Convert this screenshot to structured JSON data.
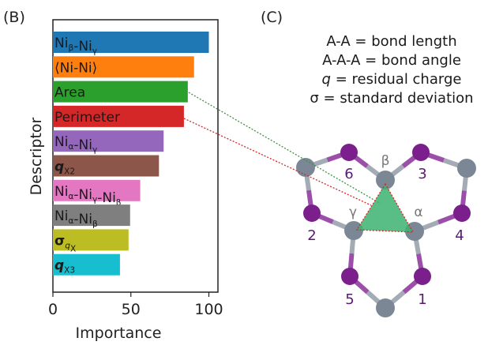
{
  "panel_b_label": "(B)",
  "panel_c_label": "(C)",
  "chart_data": {
    "type": "bar",
    "orientation": "horizontal",
    "xlabel": "Importance",
    "ylabel": "Descriptor",
    "xlim": [
      0,
      105
    ],
    "xticks": [
      "0",
      "50",
      "100"
    ],
    "grid": false,
    "categories": [
      [
        {
          "t": "Ni"
        },
        {
          "t": "β",
          "sub": true
        },
        {
          "t": "-Ni"
        },
        {
          "t": "γ",
          "sub": true
        }
      ],
      [
        {
          "t": "⟨Ni-Ni⟩"
        }
      ],
      [
        {
          "t": "Area"
        }
      ],
      [
        {
          "t": "Perimeter"
        }
      ],
      [
        {
          "t": "Ni"
        },
        {
          "t": "α",
          "sub": true
        },
        {
          "t": "-Ni"
        },
        {
          "t": "γ",
          "sub": true
        }
      ],
      [
        {
          "t": "q",
          "italic": true,
          "bold": true
        },
        {
          "t": "X2",
          "sub": true
        }
      ],
      [
        {
          "t": "Ni"
        },
        {
          "t": "α",
          "sub": true
        },
        {
          "t": "-Ni"
        },
        {
          "t": "γ",
          "sub": true
        },
        {
          "t": "-Ni"
        },
        {
          "t": "β",
          "sub": true
        }
      ],
      [
        {
          "t": "Ni"
        },
        {
          "t": "α",
          "sub": true
        },
        {
          "t": "-Ni"
        },
        {
          "t": "β",
          "sub": true
        }
      ],
      [
        {
          "t": "σ",
          "bold": true
        },
        {
          "t": "q",
          "sub": true,
          "italic": true
        },
        {
          "t": "X",
          "sub": true
        }
      ],
      [
        {
          "t": "q",
          "italic": true,
          "bold": true
        },
        {
          "t": "X3",
          "sub": true
        }
      ]
    ],
    "values": [
      100,
      90.5,
      86.5,
      84,
      71,
      68,
      56,
      49.5,
      48.5,
      43
    ],
    "colors": [
      "#1f77b4",
      "#ff7f0e",
      "#2ca02c",
      "#d62728",
      "#9467bd",
      "#8c564b",
      "#e377c2",
      "#7f7f7f",
      "#bcbd22",
      "#17becf"
    ]
  },
  "legend": [
    [
      {
        "t": "A-A = bond length"
      }
    ],
    [
      {
        "t": "A-A-A = bond angle"
      }
    ],
    [
      {
        "t": "q",
        "italic": true
      },
      {
        "t": " = residual charge"
      }
    ],
    [
      {
        "t": "σ = standard deviation"
      }
    ]
  ],
  "structure": {
    "ni_site_labels": [
      "β",
      "γ",
      "α"
    ],
    "x_site_labels": [
      "6",
      "3",
      "2",
      "4",
      "5",
      "1"
    ],
    "ni_color": "#7b8794",
    "x_color": "#7a1f8c",
    "triangle_color": "#3cb371"
  }
}
